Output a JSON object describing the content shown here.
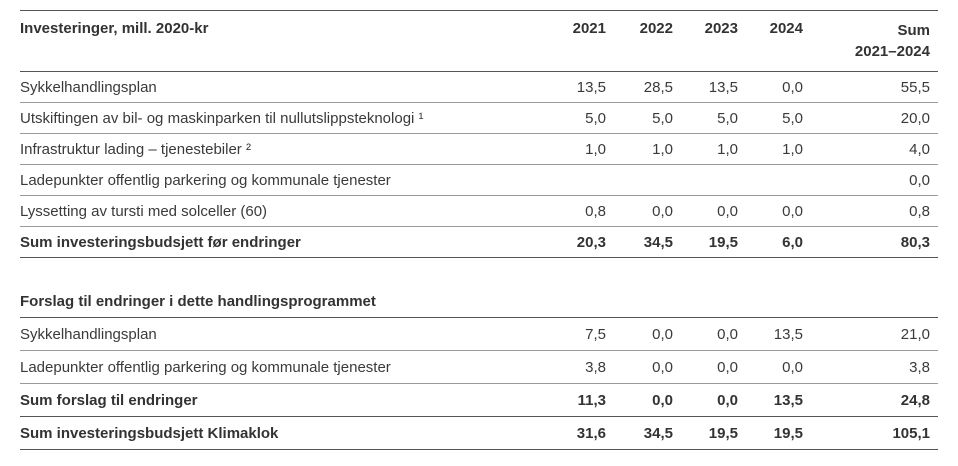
{
  "table": {
    "title": "Investeringer, mill. 2020-kr",
    "year_columns": [
      "2021",
      "2022",
      "2023",
      "2024"
    ],
    "sum_column": {
      "line1": "Sum",
      "line2": "2021–2024"
    },
    "rows": [
      {
        "label": "Sykkelhandlingsplan",
        "values": [
          "13,5",
          "28,5",
          "13,5",
          "0,0"
        ],
        "sum": "55,5"
      },
      {
        "label": "Utskiftingen av bil- og maskinparken til nullutslippsteknologi ¹",
        "values": [
          "5,0",
          "5,0",
          "5,0",
          "5,0"
        ],
        "sum": "20,0"
      },
      {
        "label": "Infrastruktur lading – tjenestebiler ²",
        "values": [
          "1,0",
          "1,0",
          "1,0",
          "1,0"
        ],
        "sum": "4,0"
      },
      {
        "label": "Ladepunkter offentlig parkering og kommunale tjenester",
        "values": [
          "",
          "",
          "",
          ""
        ],
        "sum": "0,0"
      },
      {
        "label": "Lyssetting av tursti med solceller (60)",
        "values": [
          "0,8",
          "0,0",
          "0,0",
          "0,0"
        ],
        "sum": "0,8"
      },
      {
        "label": "Sum investeringsbudsjett før endringer",
        "values": [
          "20,3",
          "34,5",
          "19,5",
          "6,0"
        ],
        "sum": "80,3"
      }
    ],
    "section2": {
      "title": "Forslag til endringer i dette handlingsprogrammet",
      "rows": [
        {
          "label": "Sykkelhandlingsplan",
          "values": [
            "7,5",
            "0,0",
            "0,0",
            "13,5"
          ],
          "sum": "21,0"
        },
        {
          "label": "Ladepunkter offentlig parkering og kommunale tjenester",
          "values": [
            "3,8",
            "0,0",
            "0,0",
            "0,0"
          ],
          "sum": "3,8"
        },
        {
          "label": "Sum forslag til endringer",
          "values": [
            "11,3",
            "0,0",
            "0,0",
            "13,5"
          ],
          "sum": "24,8"
        },
        {
          "label": "Sum investeringsbudsjett Klimaklok",
          "values": [
            "31,6",
            "34,5",
            "19,5",
            "19,5"
          ],
          "sum": "105,1"
        }
      ]
    },
    "colors": {
      "text": "#3a3a3a",
      "major_rule": "#555555",
      "minor_rule": "#9b9b9b",
      "background": "#ffffff"
    }
  }
}
